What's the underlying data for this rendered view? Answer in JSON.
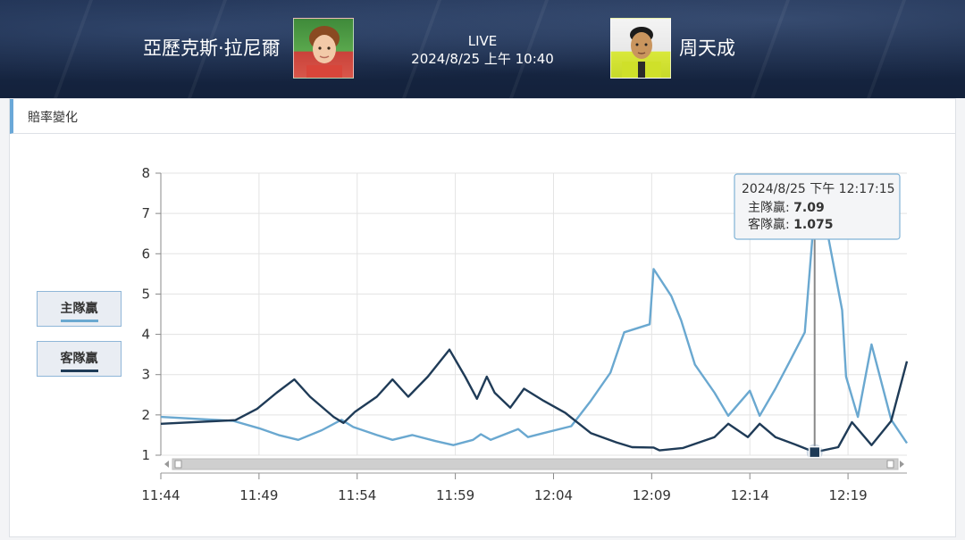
{
  "header": {
    "home_player": "亞歷克斯·拉尼爾",
    "away_player": "周天成",
    "status": "LIVE",
    "match_time": "2024/8/25 上午 10:40"
  },
  "panel": {
    "title": "賠率變化"
  },
  "legend": [
    {
      "label": "主隊贏",
      "color": "#6aa8d0"
    },
    {
      "label": "客隊贏",
      "color": "#1f3b57"
    }
  ],
  "tooltip": {
    "time": "2024/8/25 下午 12:17:15",
    "home_label": "主隊贏: ",
    "home_value": "7.09",
    "away_label": "客隊贏: ",
    "away_value": "1.075"
  },
  "chart_data": {
    "type": "line",
    "x_ticks": [
      "11:44",
      "11:49",
      "11:54",
      "11:59",
      "12:04",
      "12:09",
      "12:14",
      "12:19"
    ],
    "y_ticks": [
      1,
      2,
      3,
      4,
      5,
      6,
      7,
      8
    ],
    "ylim": [
      1,
      8
    ],
    "xlim_minutes": [
      0,
      38
    ],
    "grid": true,
    "series": [
      {
        "name": "主隊贏",
        "color": "#6aa8d0",
        "points": [
          [
            0,
            1.95
          ],
          [
            3.7,
            1.85
          ],
          [
            5.0,
            1.67
          ],
          [
            6.0,
            1.5
          ],
          [
            7.0,
            1.38
          ],
          [
            8.2,
            1.62
          ],
          [
            9.2,
            1.88
          ],
          [
            9.8,
            1.7
          ],
          [
            11.0,
            1.5
          ],
          [
            11.8,
            1.38
          ],
          [
            12.8,
            1.5
          ],
          [
            14.0,
            1.35
          ],
          [
            14.9,
            1.25
          ],
          [
            15.9,
            1.38
          ],
          [
            16.3,
            1.52
          ],
          [
            16.8,
            1.38
          ],
          [
            18.2,
            1.65
          ],
          [
            18.7,
            1.45
          ],
          [
            19.5,
            1.55
          ],
          [
            20.9,
            1.72
          ],
          [
            21.9,
            2.35
          ],
          [
            22.9,
            3.05
          ],
          [
            23.6,
            4.05
          ],
          [
            24.9,
            4.25
          ],
          [
            25.1,
            5.62
          ],
          [
            26.0,
            4.95
          ],
          [
            26.5,
            4.35
          ],
          [
            27.2,
            3.25
          ],
          [
            28.2,
            2.55
          ],
          [
            28.9,
            1.98
          ],
          [
            30.0,
            2.6
          ],
          [
            30.5,
            1.98
          ],
          [
            31.3,
            2.65
          ],
          [
            32.0,
            3.3
          ],
          [
            32.8,
            4.05
          ],
          [
            33.3,
            7.09
          ],
          [
            34.0,
            6.4
          ],
          [
            34.7,
            4.6
          ],
          [
            34.9,
            2.95
          ],
          [
            35.5,
            1.95
          ],
          [
            36.2,
            3.75
          ],
          [
            37.2,
            1.88
          ],
          [
            38,
            1.3
          ]
        ]
      },
      {
        "name": "客隊贏",
        "color": "#1f3b57",
        "points": [
          [
            0,
            1.78
          ],
          [
            3.8,
            1.87
          ],
          [
            4.9,
            2.15
          ],
          [
            5.9,
            2.55
          ],
          [
            6.8,
            2.88
          ],
          [
            7.6,
            2.45
          ],
          [
            8.8,
            1.95
          ],
          [
            9.3,
            1.8
          ],
          [
            9.9,
            2.08
          ],
          [
            11.0,
            2.45
          ],
          [
            11.8,
            2.88
          ],
          [
            12.6,
            2.45
          ],
          [
            13.6,
            2.95
          ],
          [
            14.7,
            3.62
          ],
          [
            15.5,
            2.95
          ],
          [
            16.1,
            2.4
          ],
          [
            16.6,
            2.95
          ],
          [
            17.0,
            2.55
          ],
          [
            17.8,
            2.18
          ],
          [
            18.5,
            2.65
          ],
          [
            19.5,
            2.35
          ],
          [
            20.6,
            2.05
          ],
          [
            21.9,
            1.55
          ],
          [
            23.2,
            1.32
          ],
          [
            24.0,
            1.2
          ],
          [
            25.1,
            1.19
          ],
          [
            25.4,
            1.12
          ],
          [
            26.6,
            1.18
          ],
          [
            28.2,
            1.45
          ],
          [
            28.9,
            1.78
          ],
          [
            29.9,
            1.45
          ],
          [
            30.5,
            1.78
          ],
          [
            31.3,
            1.45
          ],
          [
            32.4,
            1.25
          ],
          [
            33.3,
            1.075
          ],
          [
            34.5,
            1.2
          ],
          [
            35.2,
            1.82
          ],
          [
            36.2,
            1.25
          ],
          [
            37.2,
            1.85
          ],
          [
            38,
            3.33
          ]
        ]
      }
    ],
    "highlight_index": 35
  }
}
